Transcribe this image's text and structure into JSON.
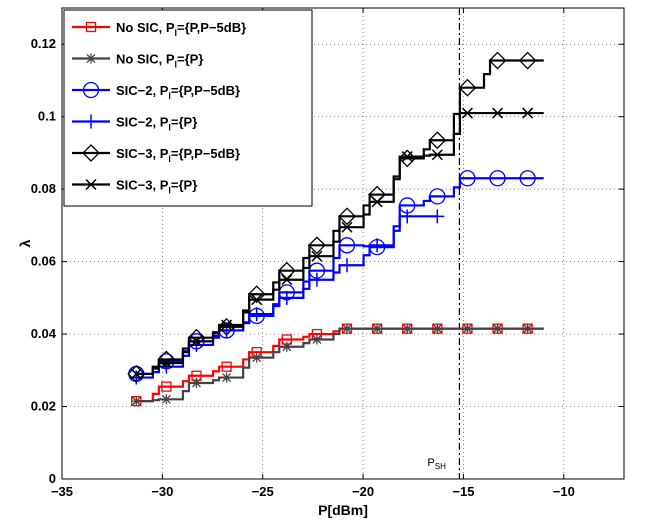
{
  "chart_data": {
    "type": "line",
    "title": "",
    "xlabel": "P[dBm]",
    "ylabel": "λ",
    "xlim": [
      -35,
      -7
    ],
    "ylim": [
      0,
      0.13
    ],
    "xticks": [
      -35,
      -30,
      -25,
      -20,
      -15,
      -10
    ],
    "xtick_labels": [
      "−35",
      "−30",
      "−25",
      "−20",
      "−15",
      "−10"
    ],
    "yticks": [
      0,
      0.02,
      0.04,
      0.06,
      0.08,
      0.1,
      0.12
    ],
    "ytick_labels": [
      "0",
      "0.02",
      "0.04",
      "0.06",
      "0.08",
      "0.1",
      "0.12"
    ],
    "grid": true,
    "legend_position": "top-left",
    "annotation": {
      "text": "P",
      "sub": "SH",
      "x": -15.2
    },
    "series": [
      {
        "name": "No SIC, P_l={P,P−5dB}",
        "color": "#ff0000",
        "marker": "square",
        "x": [
          -31.3,
          -29.8,
          -28.3,
          -26.8,
          -25.3,
          -23.8,
          -22.3,
          -20.8,
          -19.3,
          -17.8,
          -16.3,
          -14.8,
          -13.3,
          -11.8
        ],
        "y": [
          0.0215,
          0.0255,
          0.0285,
          0.031,
          0.035,
          0.0385,
          0.04,
          0.0415,
          0.0415,
          0.0415,
          0.0415,
          0.0415,
          0.0415,
          0.0415
        ]
      },
      {
        "name": "No SIC, P_l={P}",
        "color": "#444444",
        "marker": "asterisk",
        "x": [
          -31.3,
          -29.8,
          -28.3,
          -26.8,
          -25.3,
          -23.8,
          -22.3,
          -20.8,
          -19.3,
          -17.8,
          -16.3,
          -14.8,
          -13.3,
          -11.8
        ],
        "y": [
          0.0215,
          0.022,
          0.0265,
          0.028,
          0.0335,
          0.0365,
          0.0385,
          0.0415,
          0.0415,
          0.0415,
          0.0415,
          0.0415,
          0.0415,
          0.0415
        ]
      },
      {
        "name": "SIC−2, P_l={P,P−5dB}",
        "color": "#0000ff",
        "marker": "circle",
        "x": [
          -31.3,
          -29.8,
          -28.3,
          -26.8,
          -25.3,
          -23.8,
          -22.3,
          -20.8,
          -19.3,
          -17.8,
          -16.3,
          -14.8,
          -13.3,
          -11.8
        ],
        "y": [
          0.029,
          0.0325,
          0.038,
          0.041,
          0.045,
          0.0515,
          0.0575,
          0.0645,
          0.064,
          0.0755,
          0.078,
          0.083,
          0.083,
          0.083
        ]
      },
      {
        "name": "SIC−2, P_l={P}",
        "color": "#0000ff",
        "marker": "plus",
        "x": [
          -31.3,
          -29.8,
          -28.3,
          -26.8,
          -25.3,
          -23.8,
          -22.3,
          -20.8,
          -19.3,
          -17.8,
          -16.3
        ],
        "y": [
          0.028,
          0.031,
          0.037,
          0.041,
          0.0455,
          0.05,
          0.055,
          0.059,
          0.0645,
          0.0725,
          0.0725
        ]
      },
      {
        "name": "SIC−3, P_l={P,P−5dB}",
        "color": "#000000",
        "marker": "diamond",
        "x": [
          -31.3,
          -29.8,
          -28.3,
          -26.8,
          -25.3,
          -23.8,
          -22.3,
          -20.8,
          -19.3,
          -17.8,
          -16.3,
          -14.8,
          -13.3,
          -11.8
        ],
        "y": [
          0.029,
          0.033,
          0.039,
          0.042,
          0.051,
          0.0575,
          0.0645,
          0.0725,
          0.0785,
          0.0885,
          0.0935,
          0.108,
          0.1155,
          0.1155
        ]
      },
      {
        "name": "SIC−3, P_l={P}",
        "color": "#000000",
        "marker": "x",
        "x": [
          -31.3,
          -29.8,
          -28.3,
          -26.8,
          -25.3,
          -23.8,
          -22.3,
          -20.8,
          -19.3,
          -17.8,
          -16.3,
          -14.8,
          -13.3,
          -11.8
        ],
        "y": [
          0.029,
          0.032,
          0.038,
          0.0425,
          0.0495,
          0.055,
          0.0615,
          0.0695,
          0.0765,
          0.089,
          0.0895,
          0.101,
          0.101,
          0.101
        ]
      }
    ]
  }
}
